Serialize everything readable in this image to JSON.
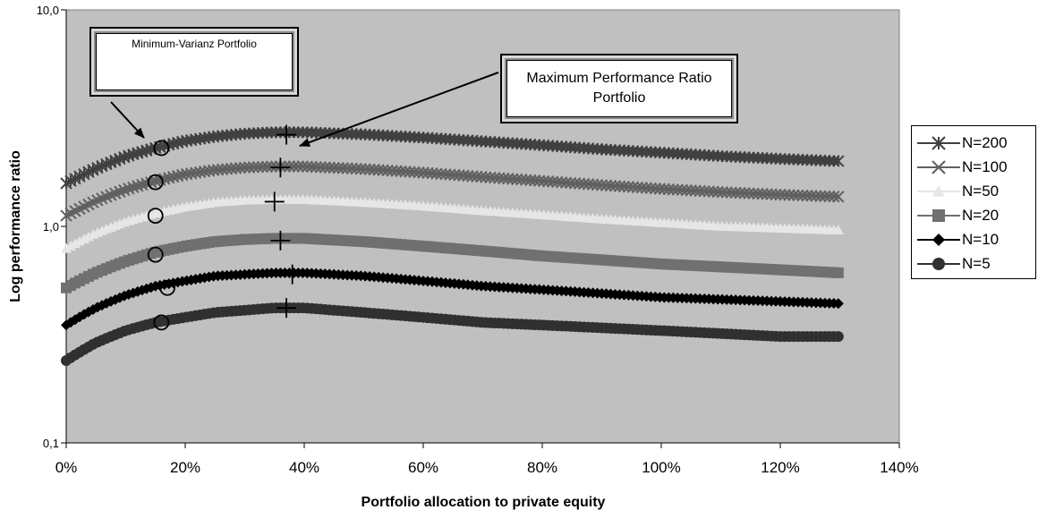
{
  "chart_data": {
    "type": "line",
    "title": "",
    "xlabel": "Portfolio allocation to private equity",
    "ylabel": "Log performance ratio",
    "y_scale": "log",
    "xlim": [
      0,
      1.4
    ],
    "ylim": [
      0.1,
      10
    ],
    "x_tick_labels": [
      "0%",
      "20%",
      "40%",
      "60%",
      "80%",
      "100%",
      "120%",
      "140%"
    ],
    "y_tick_labels": [
      "0,1",
      "1,0",
      "10,0"
    ],
    "grid": false,
    "background": "#c0c0c0",
    "legend_position": "right",
    "x": [
      0,
      0.05,
      0.1,
      0.15,
      0.2,
      0.25,
      0.3,
      0.35,
      0.4,
      0.5,
      0.6,
      0.7,
      0.8,
      0.9,
      1.0,
      1.1,
      1.2,
      1.3
    ],
    "series": [
      {
        "name": "N=200",
        "color": "#404040",
        "marker": "asterisk",
        "values": [
          1.58,
          1.85,
          2.1,
          2.3,
          2.48,
          2.6,
          2.68,
          2.72,
          2.72,
          2.66,
          2.57,
          2.47,
          2.37,
          2.27,
          2.19,
          2.11,
          2.05,
          2.0
        ]
      },
      {
        "name": "N=100",
        "color": "#606060",
        "marker": "x",
        "values": [
          1.12,
          1.31,
          1.48,
          1.62,
          1.74,
          1.82,
          1.87,
          1.89,
          1.89,
          1.84,
          1.77,
          1.69,
          1.62,
          1.55,
          1.49,
          1.44,
          1.4,
          1.37
        ]
      },
      {
        "name": "N=50",
        "color": "#e6e6e6",
        "marker": "triangle",
        "values": [
          0.79,
          0.93,
          1.05,
          1.15,
          1.23,
          1.29,
          1.32,
          1.33,
          1.33,
          1.29,
          1.24,
          1.18,
          1.13,
          1.08,
          1.04,
          1.0,
          0.98,
          0.96
        ]
      },
      {
        "name": "N=20",
        "color": "#707070",
        "marker": "square",
        "values": [
          0.52,
          0.61,
          0.69,
          0.76,
          0.81,
          0.85,
          0.87,
          0.88,
          0.88,
          0.85,
          0.81,
          0.77,
          0.73,
          0.7,
          0.67,
          0.65,
          0.63,
          0.61
        ]
      },
      {
        "name": "N=10",
        "color": "#000000",
        "marker": "diamond",
        "values": [
          0.35,
          0.42,
          0.48,
          0.53,
          0.56,
          0.59,
          0.6,
          0.61,
          0.61,
          0.59,
          0.56,
          0.53,
          0.51,
          0.49,
          0.47,
          0.46,
          0.45,
          0.44
        ]
      },
      {
        "name": "N=5",
        "color": "#303030",
        "marker": "circle",
        "values": [
          0.24,
          0.29,
          0.33,
          0.36,
          0.38,
          0.4,
          0.41,
          0.42,
          0.42,
          0.4,
          0.38,
          0.36,
          0.35,
          0.34,
          0.33,
          0.32,
          0.31,
          0.31
        ]
      }
    ],
    "min_variance_points": [
      {
        "series": "N=200",
        "x": 0.16,
        "y": 2.3
      },
      {
        "series": "N=100",
        "x": 0.15,
        "y": 1.6
      },
      {
        "series": "N=50",
        "x": 0.15,
        "y": 1.12
      },
      {
        "series": "N=20",
        "x": 0.15,
        "y": 0.74
      },
      {
        "series": "N=10",
        "x": 0.17,
        "y": 0.52
      },
      {
        "series": "N=5",
        "x": 0.16,
        "y": 0.36
      }
    ],
    "max_performance_points": [
      {
        "series": "N=200",
        "x": 0.37,
        "y": 2.65
      },
      {
        "series": "N=100",
        "x": 0.36,
        "y": 1.87
      },
      {
        "series": "N=50",
        "x": 0.35,
        "y": 1.3
      },
      {
        "series": "N=20",
        "x": 0.36,
        "y": 0.86
      },
      {
        "series": "N=10",
        "x": 0.38,
        "y": 0.6
      },
      {
        "series": "N=5",
        "x": 0.37,
        "y": 0.42
      }
    ],
    "annotations": [
      {
        "id": "minvar",
        "text": "Minimum-Varianz Portfolio"
      },
      {
        "id": "maxperf",
        "text": "Maximum Performance Ratio Portfolio"
      }
    ]
  }
}
